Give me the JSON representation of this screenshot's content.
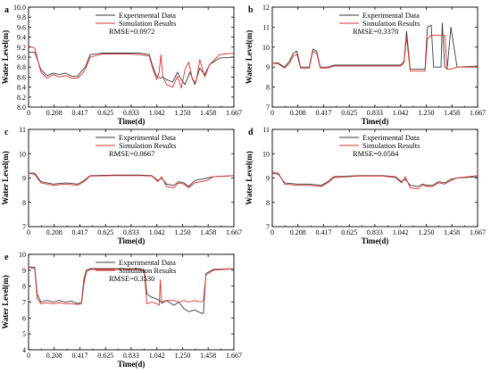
{
  "chart_data": [
    {
      "panel": "a",
      "type": "line",
      "xlabel": "Time(d)",
      "ylabel": "Water Level(m)",
      "xlim": [
        0,
        1.667
      ],
      "ylim": [
        8.0,
        10.0
      ],
      "xticks": [
        "0",
        "0.208",
        "0.417",
        "0.625",
        "0.833",
        "1.042",
        "1.250",
        "1.458",
        "1.667"
      ],
      "yticks": [
        "8.0",
        "8.2",
        "8.4",
        "8.6",
        "8.8",
        "9.0",
        "9.2",
        "9.4",
        "9.6",
        "9.8",
        "10.0"
      ],
      "legend": {
        "placement": "top-center",
        "entries": [
          "Experimental Data",
          "Simulation Results"
        ]
      },
      "rmse": "RMSE=0.0972",
      "series": [
        {
          "name": "Experimental Data",
          "color": "#3a3a3a",
          "x": [
            0,
            0.05,
            0.1,
            0.15,
            0.2,
            0.25,
            0.3,
            0.35,
            0.4,
            0.43,
            0.46,
            0.5,
            0.6,
            0.7,
            0.8,
            0.9,
            0.98,
            1.01,
            1.04,
            1.07,
            1.09,
            1.12,
            1.17,
            1.21,
            1.24,
            1.27,
            1.31,
            1.35,
            1.39,
            1.43,
            1.47,
            1.55,
            1.667
          ],
          "y": [
            9.1,
            9.1,
            8.75,
            8.63,
            8.68,
            8.65,
            8.68,
            8.62,
            8.62,
            8.72,
            8.8,
            9.05,
            9.08,
            9.08,
            9.08,
            9.08,
            9.05,
            8.8,
            8.62,
            8.58,
            8.6,
            8.55,
            8.5,
            8.7,
            8.55,
            8.45,
            8.7,
            8.45,
            8.78,
            8.65,
            8.85,
            8.98,
            9.0
          ]
        },
        {
          "name": "Simulation Results",
          "color": "#d9302a",
          "x": [
            0,
            0.05,
            0.1,
            0.15,
            0.2,
            0.25,
            0.3,
            0.35,
            0.4,
            0.43,
            0.46,
            0.5,
            0.6,
            0.7,
            0.8,
            0.9,
            0.98,
            1.01,
            1.04,
            1.06,
            1.075,
            1.09,
            1.12,
            1.17,
            1.21,
            1.24,
            1.27,
            1.3,
            1.33,
            1.36,
            1.39,
            1.43,
            1.47,
            1.55,
            1.667
          ],
          "y": [
            9.22,
            9.18,
            8.7,
            8.58,
            8.65,
            8.6,
            8.63,
            8.58,
            8.58,
            8.65,
            8.75,
            9.0,
            9.06,
            9.06,
            9.06,
            9.05,
            9.02,
            8.75,
            8.55,
            8.7,
            9.05,
            8.6,
            8.45,
            8.4,
            8.62,
            8.38,
            8.75,
            8.9,
            8.55,
            8.5,
            8.95,
            8.6,
            8.85,
            9.05,
            9.08
          ]
        }
      ]
    },
    {
      "panel": "b",
      "type": "line",
      "xlabel": "Time(d)",
      "ylabel": "Water Level(m)",
      "xlim": [
        0,
        1.667
      ],
      "ylim": [
        7,
        12
      ],
      "xticks": [
        "0",
        "0.208",
        "0.417",
        "0.625",
        "0.833",
        "1.042",
        "1.250",
        "1.458",
        "1.667"
      ],
      "yticks": [
        "7",
        "8",
        "9",
        "10",
        "11",
        "12"
      ],
      "legend": {
        "placement": "top-center",
        "entries": [
          "Experimental Data",
          "Simulation Results"
        ]
      },
      "rmse": "RMSE=0.3370",
      "series": [
        {
          "name": "Experimental Data",
          "color": "#3a3a3a",
          "x": [
            0,
            0.05,
            0.1,
            0.14,
            0.17,
            0.2,
            0.23,
            0.26,
            0.3,
            0.33,
            0.36,
            0.39,
            0.42,
            0.45,
            0.5,
            0.7,
            0.9,
            1.04,
            1.07,
            1.09,
            1.12,
            1.2,
            1.24,
            1.26,
            1.29,
            1.31,
            1.34,
            1.37,
            1.38,
            1.4,
            1.42,
            1.45,
            1.5,
            1.667
          ],
          "y": [
            9.2,
            9.2,
            9.0,
            9.3,
            9.7,
            9.8,
            9.0,
            9.0,
            9.0,
            9.9,
            9.8,
            9.0,
            9.0,
            9.0,
            9.1,
            9.1,
            9.1,
            9.1,
            9.3,
            10.8,
            8.9,
            8.9,
            8.9,
            11.0,
            11.1,
            9.0,
            9.0,
            9.0,
            11.2,
            9.0,
            8.9,
            11.0,
            9.0,
            9.05
          ]
        },
        {
          "name": "Simulation Results",
          "color": "#d9302a",
          "x": [
            0,
            0.05,
            0.1,
            0.14,
            0.17,
            0.2,
            0.23,
            0.26,
            0.3,
            0.33,
            0.36,
            0.39,
            0.42,
            0.45,
            0.5,
            0.7,
            0.9,
            1.04,
            1.07,
            1.09,
            1.12,
            1.2,
            1.24,
            1.26,
            1.29,
            1.31,
            1.34,
            1.37,
            1.4,
            1.42,
            1.45,
            1.5,
            1.667
          ],
          "y": [
            9.2,
            9.15,
            8.95,
            9.2,
            9.55,
            9.65,
            8.95,
            8.95,
            8.95,
            9.8,
            9.7,
            8.95,
            8.95,
            8.95,
            9.05,
            9.05,
            9.05,
            9.05,
            9.2,
            10.5,
            8.8,
            8.8,
            8.8,
            10.4,
            10.6,
            10.6,
            10.6,
            10.6,
            10.6,
            8.9,
            8.9,
            9.0,
            9.0
          ]
        }
      ]
    },
    {
      "panel": "c",
      "type": "line",
      "xlabel": "Time(d)",
      "ylabel": "Water Level(m)",
      "xlim": [
        0,
        1.667
      ],
      "ylim": [
        7,
        11
      ],
      "xticks": [
        "0",
        "0.208",
        "0.417",
        "0.625",
        "0.833",
        "1.042",
        "1.250",
        "1.458",
        "1.667"
      ],
      "yticks": [
        "7",
        "8",
        "9",
        "10",
        "11"
      ],
      "legend": {
        "placement": "top-center",
        "entries": [
          "Experimental Data",
          "Simulation Results"
        ]
      },
      "rmse": "RMSE=0.0667",
      "series": [
        {
          "name": "Experimental Data",
          "color": "#3a3a3a",
          "x": [
            0,
            0.05,
            0.1,
            0.2,
            0.3,
            0.4,
            0.45,
            0.5,
            0.7,
            0.9,
            1.0,
            1.05,
            1.08,
            1.12,
            1.18,
            1.22,
            1.26,
            1.3,
            1.35,
            1.4,
            1.45,
            1.5,
            1.667
          ],
          "y": [
            9.2,
            9.2,
            8.85,
            8.75,
            8.8,
            8.75,
            8.9,
            9.1,
            9.12,
            9.12,
            9.1,
            8.9,
            9.0,
            8.75,
            8.7,
            8.85,
            8.8,
            8.65,
            8.9,
            8.95,
            9.0,
            9.05,
            9.1
          ]
        },
        {
          "name": "Simulation Results",
          "color": "#d9302a",
          "x": [
            0,
            0.05,
            0.1,
            0.2,
            0.3,
            0.4,
            0.45,
            0.5,
            0.7,
            0.9,
            1.0,
            1.05,
            1.08,
            1.12,
            1.18,
            1.22,
            1.26,
            1.3,
            1.35,
            1.4,
            1.45,
            1.5,
            1.667
          ],
          "y": [
            9.2,
            9.15,
            8.8,
            8.7,
            8.75,
            8.7,
            8.85,
            9.08,
            9.1,
            9.1,
            9.08,
            8.85,
            9.05,
            8.65,
            8.6,
            8.8,
            8.75,
            8.6,
            8.8,
            8.85,
            8.9,
            9.05,
            9.1
          ]
        }
      ]
    },
    {
      "panel": "d",
      "type": "line",
      "xlabel": "Time(d)",
      "ylabel": "Water Level(m)",
      "xlim": [
        0,
        1.667
      ],
      "ylim": [
        7,
        11
      ],
      "xticks": [
        "0",
        "0.208",
        "0.417",
        "0.625",
        "0.833",
        "1.042",
        "1.250",
        "1.458",
        "1.667"
      ],
      "yticks": [
        "7",
        "8",
        "9",
        "10",
        "11"
      ],
      "legend": {
        "placement": "top-center",
        "entries": [
          "Experimental Data",
          "Simulation Results"
        ]
      },
      "rmse": "RMSE=0.0584",
      "series": [
        {
          "name": "Experimental Data",
          "color": "#3a3a3a",
          "x": [
            0,
            0.05,
            0.1,
            0.2,
            0.3,
            0.4,
            0.45,
            0.5,
            0.7,
            0.9,
            1.0,
            1.05,
            1.08,
            1.12,
            1.18,
            1.22,
            1.26,
            1.3,
            1.35,
            1.4,
            1.45,
            1.5,
            1.667
          ],
          "y": [
            9.2,
            9.15,
            8.8,
            8.75,
            8.75,
            8.7,
            8.85,
            9.05,
            9.1,
            9.1,
            9.05,
            8.85,
            8.95,
            8.7,
            8.65,
            8.75,
            8.7,
            8.7,
            8.85,
            8.8,
            8.95,
            9.0,
            9.05
          ]
        },
        {
          "name": "Simulation Results",
          "color": "#d9302a",
          "x": [
            0,
            0.05,
            0.1,
            0.2,
            0.3,
            0.4,
            0.45,
            0.5,
            0.7,
            0.9,
            1.0,
            1.05,
            1.08,
            1.12,
            1.18,
            1.22,
            1.26,
            1.3,
            1.35,
            1.4,
            1.45,
            1.5,
            1.667
          ],
          "y": [
            9.25,
            9.2,
            8.75,
            8.7,
            8.7,
            8.65,
            8.8,
            9.02,
            9.08,
            9.08,
            9.02,
            8.8,
            9.05,
            8.6,
            8.55,
            8.7,
            8.65,
            8.65,
            8.8,
            8.75,
            8.9,
            9.0,
            9.1
          ]
        }
      ]
    },
    {
      "panel": "e",
      "type": "line",
      "xlabel": "Time(d)",
      "ylabel": "Water Level(m)",
      "xlim": [
        0,
        1.667
      ],
      "ylim": [
        4,
        10
      ],
      "xticks": [
        "0",
        "0.208",
        "0.417",
        "0.625",
        "0.833",
        "1.042",
        "1.250",
        "1.458",
        "1.667"
      ],
      "yticks": [
        "4",
        "5",
        "6",
        "7",
        "8",
        "9",
        "10"
      ],
      "legend": {
        "placement": "top-center",
        "entries": [
          "Experimental Data",
          "Simulation Results"
        ]
      },
      "rmse": "RMSE=0.3530",
      "series": [
        {
          "name": "Experimental Data",
          "color": "#3a3a3a",
          "x": [
            0,
            0.05,
            0.07,
            0.1,
            0.15,
            0.2,
            0.25,
            0.3,
            0.35,
            0.4,
            0.43,
            0.45,
            0.47,
            0.5,
            0.7,
            0.9,
            0.94,
            0.96,
            1.0,
            1.04,
            1.08,
            1.12,
            1.18,
            1.22,
            1.26,
            1.3,
            1.35,
            1.4,
            1.42,
            1.44,
            1.5,
            1.667
          ],
          "y": [
            9.2,
            9.2,
            7.5,
            7.0,
            7.1,
            7.0,
            7.1,
            7.0,
            7.05,
            6.9,
            7.0,
            8.5,
            9.0,
            9.1,
            9.1,
            9.1,
            9.0,
            7.5,
            7.3,
            7.2,
            7.0,
            7.1,
            6.8,
            7.0,
            6.6,
            6.4,
            6.5,
            6.3,
            6.3,
            8.8,
            9.05,
            9.1
          ]
        },
        {
          "name": "Simulation Results",
          "color": "#d9302a",
          "x": [
            0,
            0.05,
            0.07,
            0.1,
            0.15,
            0.2,
            0.25,
            0.3,
            0.35,
            0.4,
            0.43,
            0.45,
            0.47,
            0.5,
            0.7,
            0.9,
            0.94,
            0.96,
            1.0,
            1.04,
            1.06,
            1.07,
            1.08,
            1.12,
            1.18,
            1.22,
            1.26,
            1.3,
            1.35,
            1.4,
            1.42,
            1.44,
            1.5,
            1.667
          ],
          "y": [
            9.2,
            9.1,
            7.2,
            6.9,
            6.95,
            6.9,
            6.95,
            6.9,
            6.9,
            6.85,
            6.9,
            8.2,
            8.9,
            9.05,
            9.05,
            9.05,
            8.9,
            6.9,
            7.0,
            6.9,
            6.8,
            8.4,
            6.9,
            7.1,
            7.1,
            7.0,
            7.1,
            7.0,
            7.1,
            7.0,
            7.1,
            8.7,
            9.0,
            9.1
          ]
        }
      ]
    }
  ]
}
